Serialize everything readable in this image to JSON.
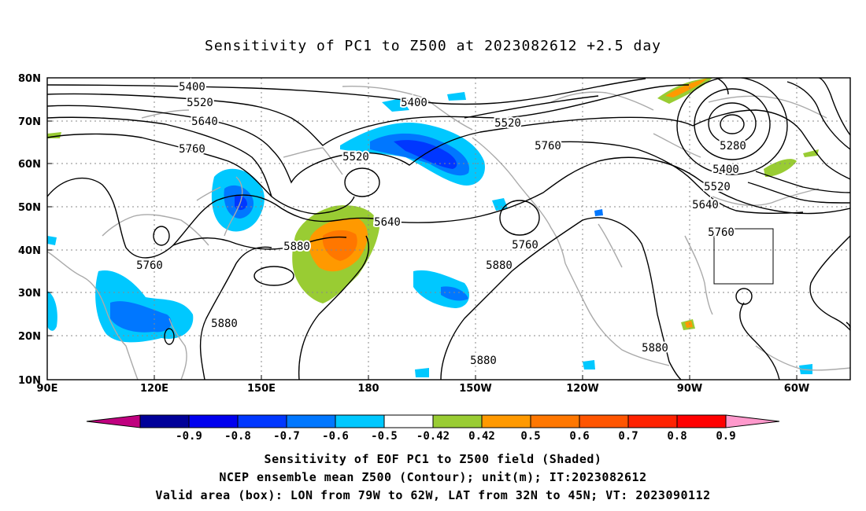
{
  "title": "Sensitivity of PC1 to Z500 at 2023082612 +2.5 day",
  "map": {
    "lat_labels": [
      "80N",
      "70N",
      "60N",
      "50N",
      "40N",
      "30N",
      "20N",
      "10N"
    ],
    "lon_labels": [
      "90E",
      "120E",
      "150E",
      "180",
      "150W",
      "120W",
      "90W",
      "60W"
    ],
    "contour_labels": [
      "5400",
      "5520",
      "5640",
      "5760",
      "5880",
      "5400",
      "5520",
      "5640",
      "5760",
      "5880",
      "5520",
      "5760",
      "5280",
      "5400",
      "5520",
      "5640",
      "5760",
      "5880",
      "5880",
      "5880",
      "5640",
      "5760"
    ],
    "colors": {
      "contour": "#000000",
      "coast": "#aaaaaa",
      "grid": "#888888"
    }
  },
  "colorbar": {
    "colors": [
      "#c0007f",
      "#000099",
      "#0000ee",
      "#0037ff",
      "#0077ff",
      "#00c8ff",
      "#ffffff",
      "#99cc33",
      "#ff9900",
      "#ff7700",
      "#ff5500",
      "#ff2200",
      "#ff0000",
      "#ff99cc"
    ],
    "labels": [
      "-0.9",
      "-0.8",
      "-0.7",
      "-0.6",
      "-0.5",
      "-0.42",
      "0.42",
      "0.5",
      "0.6",
      "0.7",
      "0.8",
      "0.9"
    ]
  },
  "captions": [
    "Sensitivity of EOF PC1 to Z500 field (Shaded)",
    "NCEP ensemble mean Z500 (Contour); unit(m); IT:2023082612",
    "Valid area (box): LON from 79W to 62W, LAT from 32N to 45N; VT: 2023090112"
  ]
}
